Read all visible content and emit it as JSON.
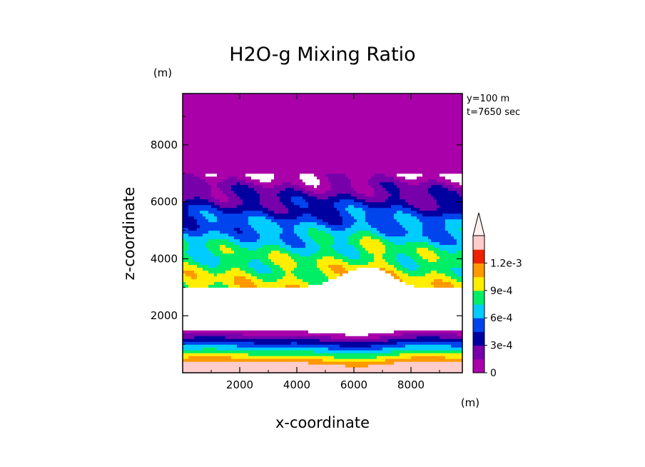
{
  "chart_data": {
    "type": "heatmap",
    "title": "H2O-g Mixing Ratio",
    "xlabel": "x-coordinate",
    "ylabel": "z-coordinate",
    "x_unit": "(m)",
    "y_unit": "(m)",
    "info_lines": [
      "y=100 m",
      "t=7650 sec"
    ],
    "xlim": [
      0,
      9800
    ],
    "ylim": [
      0,
      9800
    ],
    "x_ticks": [
      2000,
      4000,
      6000,
      8000
    ],
    "y_ticks": [
      2000,
      4000,
      6000,
      8000
    ],
    "x_tick_labels": [
      "2000",
      "4000",
      "6000",
      "8000"
    ],
    "y_tick_labels": [
      "2000",
      "4000",
      "6000",
      "8000"
    ],
    "colorbar": {
      "levels": [
        0,
        0.00015,
        0.0003,
        0.00045,
        0.0006,
        0.00075,
        0.0009,
        0.00105,
        0.0012
      ],
      "colors": [
        "#aa00aa",
        "#7700aa",
        "#0000a0",
        "#0044ee",
        "#00ccff",
        "#00ee66",
        "#ffee00",
        "#ff9900",
        "#ee2200",
        "#ffcccc"
      ],
      "tick_labels": [
        "0",
        "3e-4",
        "6e-4",
        "9e-4",
        "1.2e-3"
      ],
      "tick_values": [
        0,
        0.0003,
        0.0006,
        0.0009,
        0.0012
      ],
      "extend": "max"
    },
    "grid": false
  }
}
